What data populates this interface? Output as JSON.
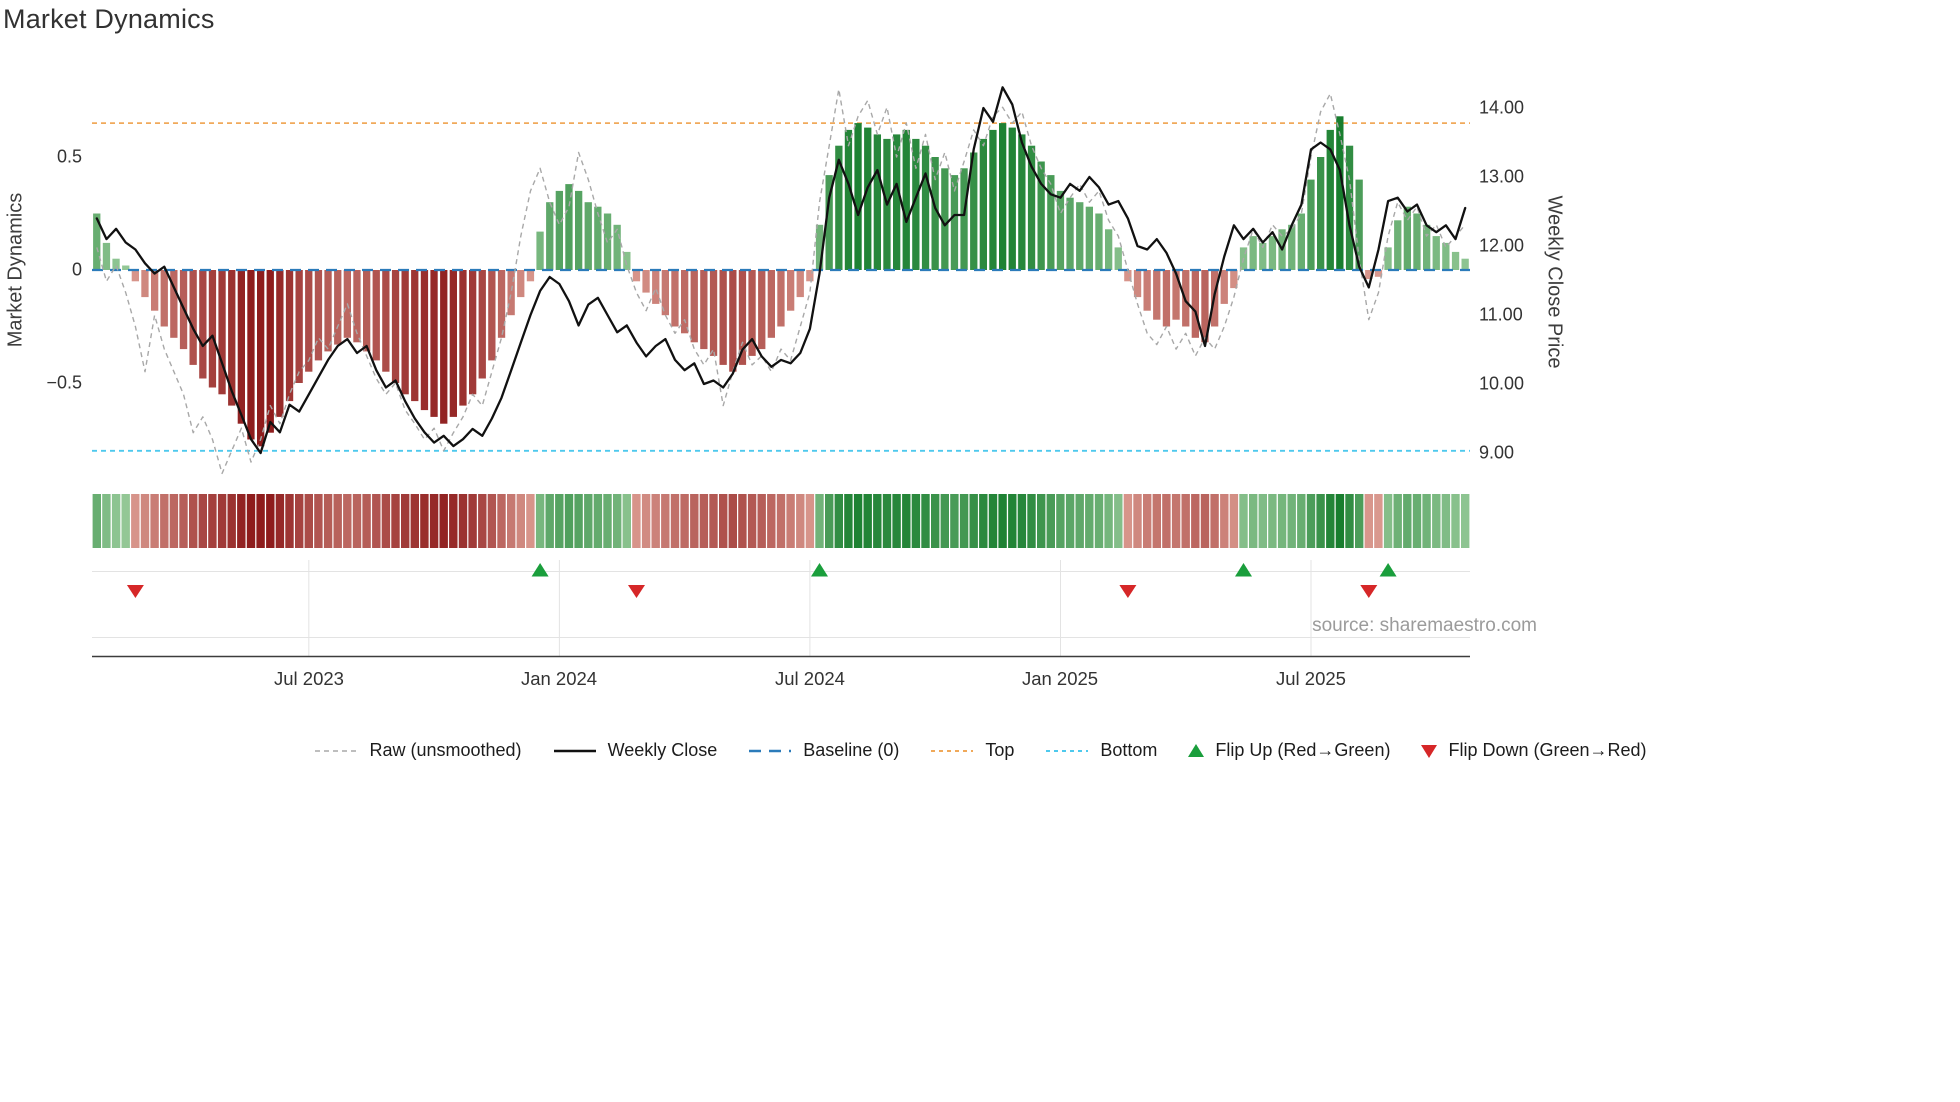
{
  "title": "Market Dynamics",
  "source": "source: sharemaestro.com",
  "left_axis": {
    "label": "Market Dynamics",
    "tick_labels": [
      "0.5",
      "0",
      "−0.5"
    ]
  },
  "right_axis": {
    "label": "Weekly Close Price",
    "tick_labels": [
      "14.00",
      "13.00",
      "12.00",
      "11.00",
      "10.00",
      "9.00"
    ]
  },
  "x_axis": {
    "tick_labels": [
      "Jul 2023",
      "Jan 2024",
      "Jul 2024",
      "Jan 2025",
      "Jul 2025"
    ],
    "tick_weeks": [
      22,
      48,
      74,
      100,
      126
    ]
  },
  "legend": [
    {
      "label": "Raw (unsmoothed)",
      "type": "dashed-line",
      "color": "#a8a8a8"
    },
    {
      "label": "Weekly Close",
      "type": "solid-line",
      "color": "#111111"
    },
    {
      "label": "Baseline (0)",
      "type": "long-dashed-line",
      "color": "#2b7bba"
    },
    {
      "label": "Top",
      "type": "dotted-line",
      "color": "#f0a95a"
    },
    {
      "label": "Bottom",
      "type": "dotted-line",
      "color": "#4ec9ed"
    },
    {
      "label": "Flip Up (Red→Green)",
      "type": "triangle-up",
      "color": "#1a9e3c"
    },
    {
      "label": "Flip Down (Green→Red)",
      "type": "triangle-down",
      "color": "#d62728"
    }
  ],
  "colors": {
    "bar_green_light": "#c3e4be",
    "bar_green_dark": "#117a28",
    "bar_red_light": "#f6c8ba",
    "bar_red_dark": "#8e1c1c",
    "weekly_close_line": "#111111",
    "raw_line": "#a8a8a8",
    "baseline": "#2b7bba",
    "top_line": "#f0a95a",
    "bottom_line": "#4ec9ed",
    "flip_up": "#1a9e3c",
    "flip_down": "#d62728",
    "grid": "#e3e3e3",
    "axis_spine": "#3c3c3c"
  },
  "chart_data": {
    "type": "bar+line",
    "title": "Market Dynamics",
    "x_start": "2023-01-27",
    "x_interval": "weekly",
    "n_points": 143,
    "left_ylabel": "Market Dynamics",
    "right_ylabel": "Weekly Close Price",
    "left_ylim": [
      -0.95,
      0.95
    ],
    "right_ylim": [
      8.8,
      14.6
    ],
    "baseline": 0,
    "top_threshold": 0.65,
    "bottom_threshold": -0.8,
    "legend_position": "bottom",
    "heatmap_strip": "bar values repeated as color-coded weekly cells below main plot",
    "flip_up_weeks": [
      46,
      75,
      119,
      134
    ],
    "flip_down_weeks": [
      4,
      56,
      107,
      132
    ],
    "series": [
      {
        "name": "Smoothed oscillator (bars)",
        "axis": "left",
        "values": [
          0.25,
          0.12,
          0.05,
          0.02,
          -0.05,
          -0.12,
          -0.18,
          -0.25,
          -0.3,
          -0.35,
          -0.42,
          -0.48,
          -0.52,
          -0.55,
          -0.6,
          -0.68,
          -0.75,
          -0.78,
          -0.72,
          -0.65,
          -0.58,
          -0.5,
          -0.45,
          -0.4,
          -0.36,
          -0.33,
          -0.3,
          -0.32,
          -0.36,
          -0.4,
          -0.45,
          -0.5,
          -0.55,
          -0.58,
          -0.62,
          -0.65,
          -0.68,
          -0.65,
          -0.6,
          -0.55,
          -0.48,
          -0.4,
          -0.3,
          -0.2,
          -0.12,
          -0.05,
          0.17,
          0.3,
          0.35,
          0.38,
          0.35,
          0.3,
          0.28,
          0.25,
          0.2,
          0.08,
          -0.05,
          -0.1,
          -0.15,
          -0.2,
          -0.25,
          -0.28,
          -0.32,
          -0.35,
          -0.38,
          -0.42,
          -0.45,
          -0.42,
          -0.38,
          -0.35,
          -0.3,
          -0.25,
          -0.18,
          -0.12,
          -0.05,
          0.2,
          0.42,
          0.55,
          0.62,
          0.65,
          0.63,
          0.6,
          0.58,
          0.6,
          0.62,
          0.58,
          0.55,
          0.5,
          0.45,
          0.42,
          0.45,
          0.52,
          0.58,
          0.62,
          0.65,
          0.63,
          0.6,
          0.55,
          0.48,
          0.42,
          0.35,
          0.32,
          0.3,
          0.28,
          0.25,
          0.18,
          0.1,
          -0.05,
          -0.12,
          -0.18,
          -0.22,
          -0.25,
          -0.22,
          -0.25,
          -0.3,
          -0.32,
          -0.25,
          -0.15,
          -0.08,
          0.1,
          0.15,
          0.12,
          0.15,
          0.18,
          0.2,
          0.25,
          0.4,
          0.5,
          0.62,
          0.68,
          0.55,
          0.4,
          -0.04,
          -0.03,
          0.1,
          0.22,
          0.28,
          0.25,
          0.2,
          0.15,
          0.12,
          0.08,
          0.05
        ]
      },
      {
        "name": "Raw (unsmoothed)",
        "axis": "left",
        "values": [
          0.1,
          -0.05,
          0.02,
          -0.1,
          -0.25,
          -0.45,
          -0.2,
          -0.35,
          -0.45,
          -0.55,
          -0.72,
          -0.65,
          -0.75,
          -0.9,
          -0.8,
          -0.7,
          -0.85,
          -0.75,
          -0.6,
          -0.68,
          -0.55,
          -0.45,
          -0.4,
          -0.3,
          -0.35,
          -0.25,
          -0.15,
          -0.28,
          -0.38,
          -0.48,
          -0.55,
          -0.5,
          -0.62,
          -0.68,
          -0.75,
          -0.7,
          -0.8,
          -0.72,
          -0.65,
          -0.55,
          -0.6,
          -0.45,
          -0.3,
          -0.1,
          0.15,
          0.35,
          0.45,
          0.3,
          0.2,
          0.28,
          0.52,
          0.4,
          0.25,
          0.12,
          0.18,
          0.02,
          -0.1,
          -0.18,
          -0.08,
          -0.2,
          -0.28,
          -0.22,
          -0.35,
          -0.42,
          -0.35,
          -0.6,
          -0.45,
          -0.32,
          -0.42,
          -0.38,
          -0.45,
          -0.35,
          -0.4,
          -0.25,
          -0.1,
          0.3,
          0.55,
          0.8,
          0.55,
          0.68,
          0.75,
          0.6,
          0.72,
          0.5,
          0.65,
          0.45,
          0.6,
          0.4,
          0.52,
          0.35,
          0.48,
          0.62,
          0.55,
          0.68,
          0.72,
          0.65,
          0.7,
          0.55,
          0.45,
          0.38,
          0.25,
          0.32,
          0.38,
          0.3,
          0.35,
          0.22,
          0.15,
          0.0,
          -0.15,
          -0.28,
          -0.33,
          -0.25,
          -0.35,
          -0.28,
          -0.38,
          -0.3,
          -0.35,
          -0.25,
          -0.12,
          0.05,
          0.18,
          0.1,
          0.2,
          0.15,
          0.18,
          0.25,
          0.5,
          0.7,
          0.78,
          0.6,
          0.4,
          0.05,
          -0.22,
          -0.1,
          0.15,
          0.3,
          0.22,
          0.28,
          0.15,
          0.2,
          0.1,
          0.15,
          0.2
        ]
      },
      {
        "name": "Weekly Close",
        "axis": "right",
        "values": [
          12.4,
          12.1,
          12.25,
          12.05,
          11.95,
          11.75,
          11.6,
          11.7,
          11.4,
          11.1,
          10.8,
          10.55,
          10.7,
          10.3,
          9.9,
          9.55,
          9.2,
          9.0,
          9.45,
          9.3,
          9.7,
          9.6,
          9.85,
          10.1,
          10.35,
          10.55,
          10.65,
          10.45,
          10.55,
          10.2,
          9.95,
          10.05,
          9.75,
          9.5,
          9.3,
          9.15,
          9.25,
          9.1,
          9.2,
          9.35,
          9.25,
          9.5,
          9.8,
          10.2,
          10.6,
          11.0,
          11.35,
          11.55,
          11.45,
          11.2,
          10.85,
          11.15,
          11.25,
          11.0,
          10.75,
          10.85,
          10.6,
          10.4,
          10.55,
          10.65,
          10.35,
          10.2,
          10.3,
          10.0,
          10.05,
          9.95,
          10.15,
          10.5,
          10.65,
          10.4,
          10.25,
          10.35,
          10.3,
          10.45,
          10.8,
          11.6,
          12.7,
          13.25,
          12.9,
          12.45,
          12.85,
          13.1,
          12.6,
          12.9,
          12.35,
          12.7,
          13.05,
          12.55,
          12.3,
          12.45,
          12.45,
          13.4,
          14.0,
          13.8,
          14.3,
          14.05,
          13.5,
          13.15,
          12.9,
          12.75,
          12.7,
          12.9,
          12.8,
          13.0,
          12.85,
          12.6,
          12.65,
          12.4,
          12.0,
          11.95,
          12.1,
          11.9,
          11.6,
          11.2,
          11.05,
          10.55,
          11.3,
          11.85,
          12.3,
          12.1,
          12.25,
          12.05,
          12.2,
          11.95,
          12.3,
          12.6,
          13.4,
          13.5,
          13.4,
          13.1,
          12.3,
          11.7,
          11.4,
          11.95,
          12.65,
          12.7,
          12.5,
          12.6,
          12.3,
          12.2,
          12.3,
          12.1,
          12.55
        ]
      }
    ]
  }
}
